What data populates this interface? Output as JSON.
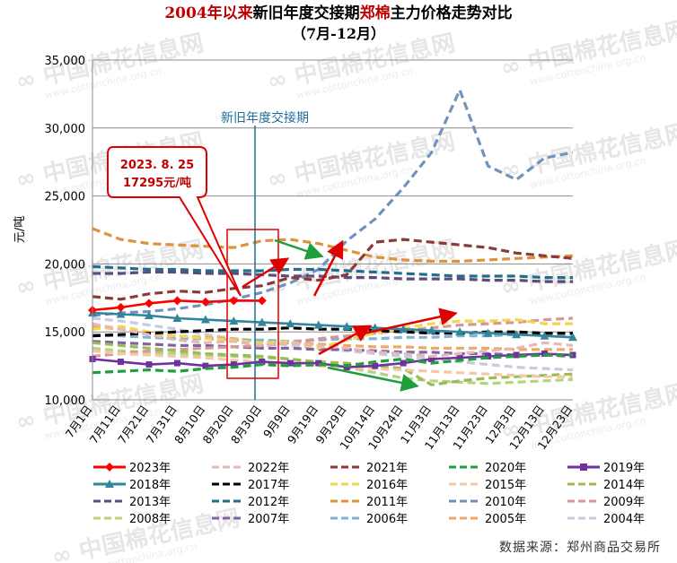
{
  "title": {
    "part1": "2004年以来",
    "part2": "新旧年度交接期",
    "part3": "郑棉",
    "part4": "主力价格走势对比"
  },
  "subtitle": "（7月-12月）",
  "source": "数据来源：郑州商品交易所",
  "watermark": {
    "brand": "中国棉花信息网",
    "url": "www.cottonchina.org.cn"
  },
  "chart_data": {
    "type": "line",
    "title": "2004年以来新旧年度交接期郑棉主力价格走势对比",
    "subtitle": "（7月-12月）",
    "ylabel": "元/吨",
    "xlabel": "",
    "ylim": [
      10000,
      35000
    ],
    "yticks": [
      "10,000",
      "15,000",
      "20,000",
      "25,000",
      "30,000",
      "35,000"
    ],
    "xticks": [
      "7月1日",
      "7月11日",
      "7月21日",
      "7月31日",
      "8月10日",
      "8月20日",
      "8月30日",
      "9月9日",
      "9月19日",
      "9月29日",
      "10月14日",
      "10月24日",
      "11月3日",
      "11月13日",
      "11月23日",
      "12月3日",
      "12月13日",
      "12月23日"
    ],
    "grid": "horizontal",
    "legend_position": "bottom",
    "annotations": {
      "vline_label": "新旧年度交接期",
      "callout_line1": "2023. 8. 25",
      "callout_line2": "17295元/吨"
    },
    "series": [
      {
        "name": "2023年",
        "color": "#ff0000",
        "style": "solid-diamond",
        "values": [
          16600,
          16800,
          17100,
          17300,
          17200,
          17300,
          17295
        ]
      },
      {
        "name": "2022年",
        "color": "#e6b8b7",
        "style": "dash",
        "values": [
          15600,
          15200,
          14800,
          14400,
          14200,
          14300,
          14000,
          14200,
          14000,
          13800,
          13500,
          13400,
          13200,
          13400,
          13600,
          13800,
          14200,
          14000
        ]
      },
      {
        "name": "2021年",
        "color": "#8b3a3a",
        "style": "dash",
        "values": [
          17600,
          17400,
          17800,
          18000,
          17900,
          18200,
          18400,
          19000,
          18800,
          19200,
          21600,
          21800,
          21600,
          21400,
          21200,
          20800,
          20600,
          20400
        ]
      },
      {
        "name": "2020年",
        "color": "#1f9e3c",
        "style": "dash",
        "values": [
          12000,
          12100,
          12200,
          12100,
          12300,
          12400,
          12600,
          12500,
          12600,
          12500,
          12800,
          13000,
          12700,
          12900,
          13100,
          13200,
          13300,
          13300
        ]
      },
      {
        "name": "2019年",
        "color": "#7030a0",
        "style": "solid-square",
        "values": [
          13000,
          12800,
          12600,
          12700,
          12500,
          12600,
          12800,
          12700,
          12700,
          12400,
          12500,
          12700,
          13000,
          13100,
          13200,
          13300,
          13400,
          13300
        ]
      },
      {
        "name": "2018年",
        "color": "#31859c",
        "style": "solid-triangle",
        "values": [
          16400,
          16300,
          16200,
          16000,
          15900,
          15800,
          15700,
          15600,
          15500,
          15400,
          15300,
          15200,
          15100,
          15000,
          14900,
          14800,
          14700,
          14600
        ]
      },
      {
        "name": "2017年",
        "color": "#000000",
        "style": "dash",
        "values": [
          14700,
          14800,
          14900,
          15000,
          15100,
          15200,
          15200,
          15300,
          15200,
          15200,
          15100,
          15000,
          14900,
          14900,
          15000,
          15000,
          14900,
          14900
        ]
      },
      {
        "name": "2016年",
        "color": "#f2d64b",
        "style": "dash",
        "values": [
          15200,
          15400,
          15000,
          14700,
          14500,
          14400,
          14200,
          14300,
          13800,
          14400,
          14900,
          15300,
          15600,
          15800,
          15800,
          15900,
          15600,
          15600
        ]
      },
      {
        "name": "2015年",
        "color": "#f4c7a6",
        "style": "dash",
        "values": [
          13600,
          13400,
          13300,
          13200,
          13100,
          12900,
          12800,
          12600,
          12500,
          12400,
          12300,
          12200,
          12100,
          12000,
          11900,
          11800,
          11700,
          11700
        ]
      },
      {
        "name": "2014年",
        "color": "#9bbb59",
        "style": "dash",
        "values": [
          14200,
          14000,
          13800,
          13600,
          13400,
          13300,
          13200,
          13000,
          12800,
          12700,
          12500,
          12300,
          11100,
          11400,
          11600,
          11700,
          11800,
          11900
        ]
      },
      {
        "name": "2013年",
        "color": "#604a7b",
        "style": "dash",
        "values": [
          19300,
          19300,
          19400,
          19400,
          19300,
          19300,
          19200,
          19100,
          19100,
          19000,
          19000,
          18900,
          18900,
          18900,
          18800,
          18800,
          18700,
          18700
        ]
      },
      {
        "name": "2012年",
        "color": "#1f6e8c",
        "style": "dash",
        "values": [
          19800,
          19700,
          19600,
          19600,
          19500,
          19500,
          19500,
          19600,
          19600,
          19500,
          19400,
          19300,
          19200,
          19100,
          19100,
          19100,
          19000,
          19000
        ]
      },
      {
        "name": "2011年",
        "color": "#e0923a",
        "style": "dash",
        "values": [
          22600,
          21800,
          21500,
          21400,
          21300,
          21200,
          21700,
          21800,
          21500,
          21000,
          20500,
          20300,
          20200,
          20200,
          20300,
          20400,
          20500,
          20600
        ]
      },
      {
        "name": "2010年",
        "color": "#6f93bd",
        "style": "dash",
        "values": [
          16200,
          16400,
          16500,
          16700,
          17000,
          17400,
          17900,
          18600,
          19600,
          21700,
          23300,
          25600,
          28200,
          32800,
          27200,
          26200,
          27800,
          28200
        ]
      },
      {
        "name": "2009年",
        "color": "#d99694",
        "style": "dash",
        "values": [
          13200,
          13400,
          13600,
          13700,
          13800,
          13900,
          14000,
          14200,
          14500,
          14700,
          14900,
          15100,
          15300,
          15500,
          15600,
          15700,
          15900,
          16000
        ]
      },
      {
        "name": "2008年",
        "color": "#b4d47a",
        "style": "dash",
        "values": [
          13800,
          13600,
          13500,
          13400,
          13300,
          13200,
          13100,
          13000,
          12700,
          12400,
          12000,
          11600,
          11400,
          11300,
          11200,
          11300,
          11400,
          11500
        ]
      },
      {
        "name": "2007年",
        "color": "#8064a2",
        "style": "dash",
        "values": [
          14300,
          14200,
          14100,
          14000,
          14000,
          13900,
          13800,
          13800,
          13700,
          13700,
          13600,
          13500,
          13500,
          13400,
          13400,
          13300,
          13300,
          13200
        ]
      },
      {
        "name": "2006年",
        "color": "#7fb3d5",
        "style": "dash",
        "values": [
          14800,
          14700,
          14600,
          14500,
          14500,
          14400,
          14400,
          14300,
          14400,
          14500,
          14500,
          14600,
          14600,
          14700,
          14700,
          14800,
          14800,
          14800
        ]
      },
      {
        "name": "2005年",
        "color": "#f0a868",
        "style": "dash",
        "values": [
          15400,
          15200,
          14900,
          14700,
          14600,
          14500,
          14300,
          14200,
          14100,
          14000,
          13900,
          13900,
          13800,
          13800,
          13800,
          13700,
          13700,
          13700
        ]
      },
      {
        "name": "2004年",
        "color": "#c5cce0",
        "style": "dash",
        "values": [
          16000,
          15800,
          15500,
          15200,
          14800,
          14500,
          14300,
          14000,
          13800,
          13600,
          13400,
          13200,
          13000,
          12800,
          12600,
          12400,
          12300,
          12200
        ]
      }
    ]
  }
}
